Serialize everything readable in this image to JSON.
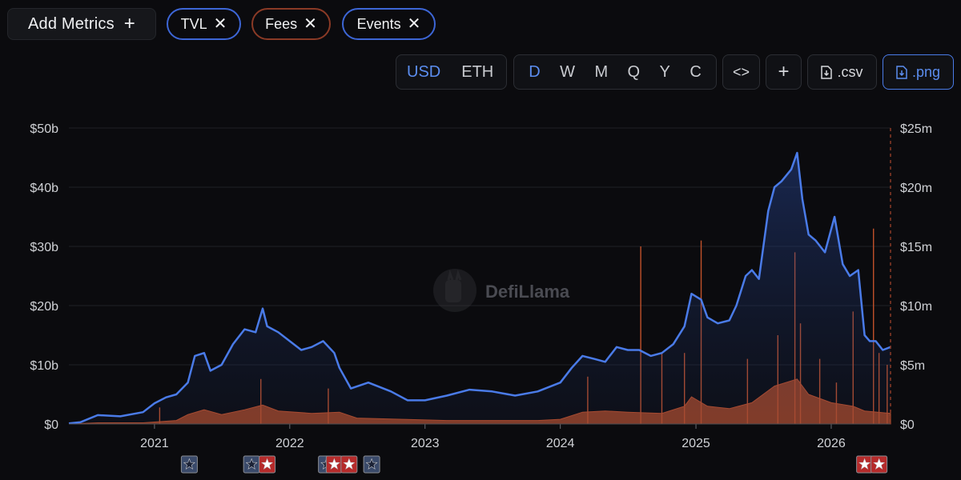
{
  "toolbar": {
    "add_metrics_label": "Add Metrics",
    "metrics": [
      {
        "label": "TVL",
        "color": "#3d66d6"
      },
      {
        "label": "Fees",
        "color": "#8a3a26"
      },
      {
        "label": "Events",
        "color": "#3d66d6"
      }
    ],
    "currency": {
      "options": [
        "USD",
        "ETH"
      ],
      "selected": "USD"
    },
    "periods": {
      "options": [
        "D",
        "W",
        "M",
        "Q",
        "Y",
        "C"
      ],
      "selected": "D"
    },
    "embed_label": "<>",
    "add_label": "+",
    "csv_label": ".csv",
    "png_label": ".png"
  },
  "watermark": "DefiLlama",
  "chart_data": {
    "type": "line",
    "x_range": [
      "2020-05-15",
      "2026-06-10"
    ],
    "xticks": [
      "2021",
      "2022",
      "2023",
      "2024",
      "2025",
      "2026"
    ],
    "y_left": {
      "ylim": [
        0,
        50
      ],
      "ticks": [
        "$0",
        "$10b",
        "$20b",
        "$30b",
        "$40b",
        "$50b"
      ]
    },
    "y_right": {
      "ylim": [
        0,
        25
      ],
      "ticks": [
        "$0",
        "$5m",
        "$10m",
        "$15m",
        "$20m",
        "$25m"
      ]
    },
    "grid": true,
    "series": [
      {
        "name": "TVL",
        "axis": "left",
        "unit": "b USD",
        "color": "#4a7be8",
        "points": [
          [
            "2020-05-15",
            0.1
          ],
          [
            "2020-06-15",
            0.3
          ],
          [
            "2020-08-01",
            1.5
          ],
          [
            "2020-10-01",
            1.3
          ],
          [
            "2020-12-01",
            2.0
          ],
          [
            "2021-01-01",
            3.5
          ],
          [
            "2021-02-01",
            4.5
          ],
          [
            "2021-03-01",
            5.0
          ],
          [
            "2021-04-01",
            7.0
          ],
          [
            "2021-04-20",
            11.5
          ],
          [
            "2021-05-15",
            12.0
          ],
          [
            "2021-06-01",
            9.0
          ],
          [
            "2021-07-01",
            10.0
          ],
          [
            "2021-08-01",
            13.5
          ],
          [
            "2021-09-01",
            16.0
          ],
          [
            "2021-10-01",
            15.5
          ],
          [
            "2021-10-20",
            19.5
          ],
          [
            "2021-11-01",
            16.5
          ],
          [
            "2021-12-01",
            15.5
          ],
          [
            "2022-01-01",
            14.0
          ],
          [
            "2022-02-01",
            12.5
          ],
          [
            "2022-03-01",
            13.0
          ],
          [
            "2022-04-01",
            14.0
          ],
          [
            "2022-05-01",
            12.0
          ],
          [
            "2022-05-15",
            9.5
          ],
          [
            "2022-06-15",
            6.0
          ],
          [
            "2022-08-01",
            7.0
          ],
          [
            "2022-10-01",
            5.5
          ],
          [
            "2022-11-15",
            4.0
          ],
          [
            "2023-01-01",
            4.0
          ],
          [
            "2023-03-01",
            4.8
          ],
          [
            "2023-05-01",
            5.8
          ],
          [
            "2023-07-01",
            5.5
          ],
          [
            "2023-09-01",
            4.8
          ],
          [
            "2023-11-01",
            5.5
          ],
          [
            "2024-01-01",
            7.0
          ],
          [
            "2024-02-01",
            9.5
          ],
          [
            "2024-03-01",
            11.5
          ],
          [
            "2024-04-01",
            11.0
          ],
          [
            "2024-05-01",
            10.5
          ],
          [
            "2024-06-01",
            13.0
          ],
          [
            "2024-07-01",
            12.5
          ],
          [
            "2024-08-01",
            12.5
          ],
          [
            "2024-09-01",
            11.5
          ],
          [
            "2024-10-01",
            12.0
          ],
          [
            "2024-11-01",
            13.5
          ],
          [
            "2024-12-01",
            16.5
          ],
          [
            "2024-12-20",
            22.0
          ],
          [
            "2025-01-15",
            21.0
          ],
          [
            "2025-02-01",
            18.0
          ],
          [
            "2025-03-01",
            17.0
          ],
          [
            "2025-04-01",
            17.5
          ],
          [
            "2025-04-20",
            20.0
          ],
          [
            "2025-05-15",
            25.0
          ],
          [
            "2025-06-01",
            26.0
          ],
          [
            "2025-06-20",
            24.5
          ],
          [
            "2025-07-15",
            36.0
          ],
          [
            "2025-08-01",
            40.0
          ],
          [
            "2025-08-20",
            41.0
          ],
          [
            "2025-09-15",
            43.0
          ],
          [
            "2025-10-01",
            45.8
          ],
          [
            "2025-10-15",
            38.0
          ],
          [
            "2025-11-01",
            32.0
          ],
          [
            "2025-11-20",
            31.0
          ],
          [
            "2025-12-15",
            29.0
          ],
          [
            "2026-01-10",
            35.0
          ],
          [
            "2026-02-01",
            27.0
          ],
          [
            "2026-02-20",
            25.0
          ],
          [
            "2026-03-15",
            26.0
          ],
          [
            "2026-04-01",
            15.0
          ],
          [
            "2026-04-15",
            14.0
          ],
          [
            "2026-05-01",
            14.0
          ],
          [
            "2026-05-20",
            12.5
          ],
          [
            "2026-06-10",
            13.0
          ]
        ]
      },
      {
        "name": "Fees",
        "axis": "right",
        "unit": "m USD",
        "color": "#c2512a",
        "points": [
          [
            "2020-05-15",
            0.0
          ],
          [
            "2020-08-01",
            0.1
          ],
          [
            "2020-12-01",
            0.1
          ],
          [
            "2021-03-01",
            0.3
          ],
          [
            "2021-04-01",
            0.8
          ],
          [
            "2021-05-15",
            1.2
          ],
          [
            "2021-07-01",
            0.8
          ],
          [
            "2021-09-01",
            1.2
          ],
          [
            "2021-10-20",
            1.6
          ],
          [
            "2021-12-01",
            1.1
          ],
          [
            "2022-03-01",
            0.9
          ],
          [
            "2022-05-15",
            1.0
          ],
          [
            "2022-07-01",
            0.5
          ],
          [
            "2022-11-01",
            0.4
          ],
          [
            "2023-03-01",
            0.3
          ],
          [
            "2023-07-01",
            0.3
          ],
          [
            "2023-11-01",
            0.3
          ],
          [
            "2024-01-01",
            0.4
          ],
          [
            "2024-03-01",
            1.0
          ],
          [
            "2024-05-01",
            1.1
          ],
          [
            "2024-07-01",
            1.0
          ],
          [
            "2024-10-01",
            0.9
          ],
          [
            "2024-12-01",
            1.5
          ],
          [
            "2024-12-20",
            2.3
          ],
          [
            "2025-02-01",
            1.5
          ],
          [
            "2025-04-01",
            1.3
          ],
          [
            "2025-06-01",
            1.8
          ],
          [
            "2025-08-01",
            3.2
          ],
          [
            "2025-10-01",
            3.8
          ],
          [
            "2025-11-01",
            2.5
          ],
          [
            "2026-01-01",
            1.8
          ],
          [
            "2026-03-01",
            1.5
          ],
          [
            "2026-04-01",
            1.1
          ],
          [
            "2026-06-10",
            0.9
          ]
        ],
        "spikes": [
          [
            "2021-01-15",
            1.4
          ],
          [
            "2021-10-15",
            3.8
          ],
          [
            "2022-04-15",
            3.0
          ],
          [
            "2024-03-15",
            4.0
          ],
          [
            "2024-08-05",
            15.0
          ],
          [
            "2024-10-01",
            6.0
          ],
          [
            "2024-12-01",
            6.0
          ],
          [
            "2025-01-15",
            15.5
          ],
          [
            "2025-05-20",
            5.5
          ],
          [
            "2025-08-10",
            7.5
          ],
          [
            "2025-09-25",
            14.5
          ],
          [
            "2025-10-10",
            8.5
          ],
          [
            "2025-12-01",
            5.5
          ],
          [
            "2026-01-15",
            3.5
          ],
          [
            "2026-03-01",
            9.5
          ],
          [
            "2026-04-25",
            16.5
          ],
          [
            "2026-05-10",
            6.0
          ],
          [
            "2026-06-01",
            5.0
          ]
        ]
      }
    ],
    "events": [
      {
        "date": "2021-04-05",
        "color": "#3a4a6a"
      },
      {
        "date": "2021-09-20",
        "color": "#3a4a6a"
      },
      {
        "date": "2021-11-01",
        "color": "#b52b2b"
      },
      {
        "date": "2022-04-10",
        "color": "#3a4a6a"
      },
      {
        "date": "2022-05-01",
        "color": "#b52b2b"
      },
      {
        "date": "2022-06-10",
        "color": "#b52b2b"
      },
      {
        "date": "2022-08-10",
        "color": "#3a4a6a"
      },
      {
        "date": "2026-04-01",
        "color": "#b52b2b"
      },
      {
        "date": "2026-05-10",
        "color": "#b52b2b"
      }
    ]
  }
}
